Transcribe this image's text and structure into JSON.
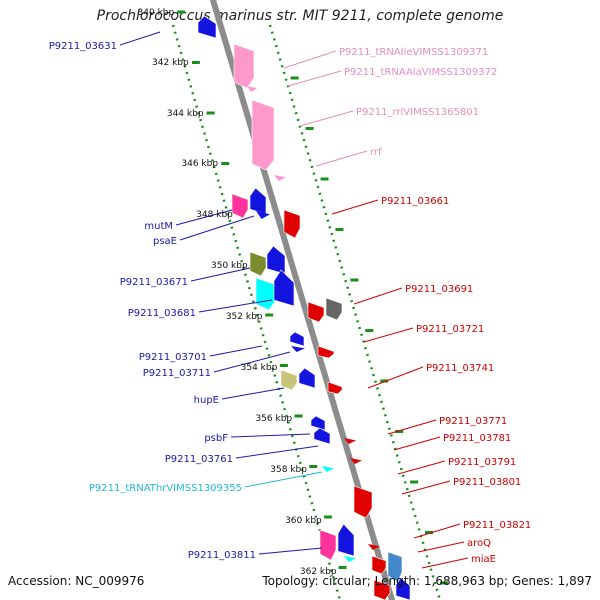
{
  "title": "Prochlorococcus marinus str. MIT 9211, complete genome",
  "footer": {
    "accession": "Accession: NC_009976",
    "summary": "Topology: circular; Length: 1,688,963 bp; Genes: 1,897"
  },
  "colors": {
    "backbone": "#8c8c8c",
    "tick": "#1a8f1a",
    "label_blue": "#1a1aa8",
    "label_red": "#d00000",
    "label_pink": "#e68fb8",
    "label_cyan": "#22b8d8",
    "gene_blue": "#1414e0",
    "gene_red": "#e00000",
    "gene_pink": "#ff99cc",
    "gene_magenta": "#ff3399",
    "gene_olive": "#7a8c2e",
    "gene_cyan": "#00ffff",
    "gene_gray": "#666666",
    "gene_khaki": "#c8c27a"
  },
  "scale_labels": [
    "340 kbp",
    "342 kbp",
    "344 kbp",
    "346 kbp",
    "348 kbp",
    "350 kbp",
    "352 kbp",
    "354 kbp",
    "356 kbp",
    "358 kbp",
    "360 kbp",
    "362 kbp"
  ],
  "left_labels": [
    {
      "text": "P9211_03631",
      "color": "blue"
    },
    {
      "text": "mutM",
      "color": "blue"
    },
    {
      "text": "psaE",
      "color": "blue"
    },
    {
      "text": "P9211_03671",
      "color": "blue"
    },
    {
      "text": "P9211_03681",
      "color": "blue"
    },
    {
      "text": "P9211_03701",
      "color": "blue"
    },
    {
      "text": "P9211_03711",
      "color": "blue"
    },
    {
      "text": "hupE",
      "color": "blue"
    },
    {
      "text": "psbF",
      "color": "blue"
    },
    {
      "text": "P9211_03761",
      "color": "blue"
    },
    {
      "text": "P9211_tRNAThrVIMSS1309355",
      "color": "cyan"
    },
    {
      "text": "P9211_03811",
      "color": "blue"
    }
  ],
  "right_labels": [
    {
      "text": "P9211_tRNAIleVIMSS1309371",
      "color": "pink"
    },
    {
      "text": "P9211_tRNAAlaVIMSS1309372",
      "color": "pink"
    },
    {
      "text": "P9211_rrlVIMSS1365801",
      "color": "pink"
    },
    {
      "text": "rrf",
      "color": "pink"
    },
    {
      "text": "P9211_03661",
      "color": "red"
    },
    {
      "text": "P9211_03691",
      "color": "red"
    },
    {
      "text": "P9211_03721",
      "color": "red"
    },
    {
      "text": "P9211_03741",
      "color": "red"
    },
    {
      "text": "P9211_03771",
      "color": "red"
    },
    {
      "text": "P9211_03781",
      "color": "red"
    },
    {
      "text": "P9211_03791",
      "color": "red"
    },
    {
      "text": "P9211_03801",
      "color": "red"
    },
    {
      "text": "P9211_03821",
      "color": "red"
    },
    {
      "text": "aroQ",
      "color": "red"
    },
    {
      "text": "miaE",
      "color": "red"
    }
  ]
}
